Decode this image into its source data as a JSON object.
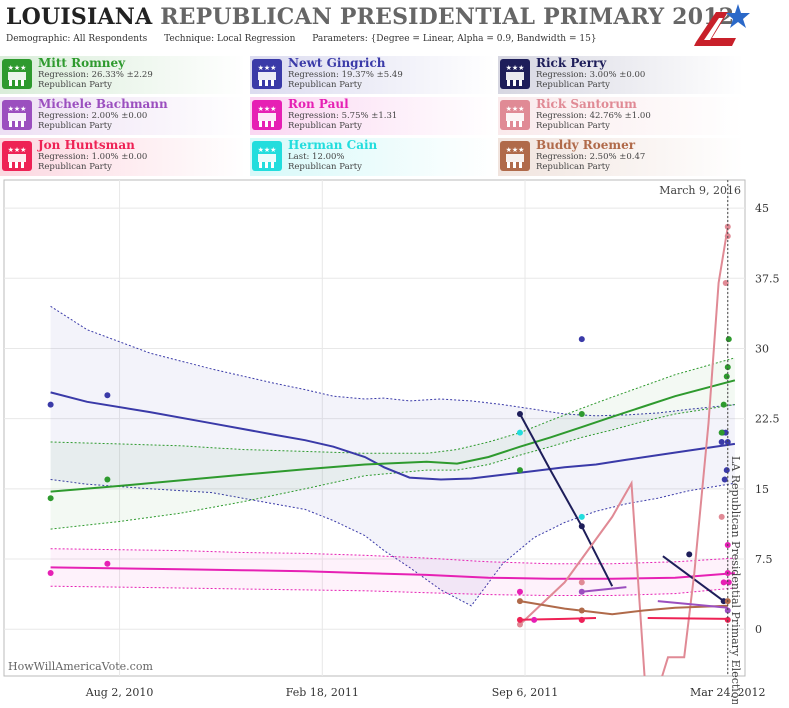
{
  "header": {
    "state": "LOUISIANA",
    "title_rest": "REPUBLICAN PRESIDENTIAL PRIMARY 2012",
    "demographic": "Demographic: All Respondents",
    "technique": "Technique: Local Regression",
    "parameters": "Parameters: {Degree = Linear, Alpha = 0.9, Bandwidth = 15}"
  },
  "candidates": [
    {
      "name": "Mitt Romney",
      "stat": "Regression: 26.33% ±2.29",
      "party": "Republican Party",
      "color": "#2e9a2e"
    },
    {
      "name": "Newt Gingrich",
      "stat": "Regression: 19.37% ±5.49",
      "party": "Republican Party",
      "color": "#3a3aa8"
    },
    {
      "name": "Rick Perry",
      "stat": "Regression: 3.00% ±0.00",
      "party": "Republican Party",
      "color": "#1e1e5a"
    },
    {
      "name": "Michele Bachmann",
      "stat": "Regression: 2.00% ±0.00",
      "party": "Republican Party",
      "color": "#9b4fbf"
    },
    {
      "name": "Ron Paul",
      "stat": "Regression: 5.75% ±1.31",
      "party": "Republican Party",
      "color": "#e620b4"
    },
    {
      "name": "Rick Santorum",
      "stat": "Regression: 42.76% ±1.00",
      "party": "Republican Party",
      "color": "#e08a95"
    },
    {
      "name": "Jon Huntsman",
      "stat": "Regression: 1.00% ±0.00",
      "party": "Republican Party",
      "color": "#ee2255"
    },
    {
      "name": "Herman Cain",
      "stat": "Last: 12.00%",
      "party": "Republican Party",
      "color": "#22dddd"
    },
    {
      "name": "Buddy Roemer",
      "stat": "Regression: 2.50% ±0.47",
      "party": "Republican Party",
      "color": "#b06a4a"
    }
  ],
  "chart_data": {
    "type": "line",
    "x_ticks": [
      "Aug 2, 2010",
      "Feb 18, 2011",
      "Sep 6, 2011",
      "Mar 24, 2012"
    ],
    "y_ticks": [
      "45",
      "37.5",
      "30",
      "22.5",
      "15",
      "7.5",
      "0"
    ],
    "ylim": [
      -5,
      48
    ],
    "xlim": [
      "2010-04-10",
      "2012-04-10"
    ],
    "date_marker": "March 9, 2016",
    "election_label": "LA Republican Presidential Primary Election",
    "election_date": "2012-03-24",
    "watermark": "HowWillAmericaVote.com",
    "series": [
      {
        "name": "Newt Gingrich",
        "color": "#3a3aa8",
        "x": [
          "2010-05-26",
          "2010-07-01",
          "2010-09-01",
          "2010-11-01",
          "2011-01-01",
          "2011-02-01",
          "2011-03-01",
          "2011-04-01",
          "2011-04-20",
          "2011-05-15",
          "2011-06-15",
          "2011-07-15",
          "2011-08-15",
          "2011-09-15",
          "2011-10-15",
          "2011-11-15",
          "2011-12-15",
          "2012-01-15",
          "2012-02-15",
          "2012-03-31"
        ],
        "y": [
          25.3,
          24.3,
          23.2,
          22.0,
          20.8,
          20.2,
          19.5,
          18.4,
          17.3,
          16.2,
          16.0,
          16.1,
          16.5,
          16.9,
          17.3,
          17.6,
          18.1,
          18.6,
          19.1,
          19.8
        ],
        "upper": [
          34.5,
          32.0,
          29.5,
          27.8,
          26.3,
          25.6,
          24.9,
          24.6,
          24.7,
          24.4,
          24.6,
          24.4,
          24.0,
          23.5,
          23.0,
          22.8,
          22.9,
          23.1,
          23.5,
          24.0
        ],
        "lower": [
          16.0,
          15.5,
          15.0,
          14.6,
          13.4,
          12.8,
          11.6,
          10.0,
          8.4,
          6.6,
          4.2,
          2.5,
          7.0,
          9.8,
          11.4,
          12.6,
          13.4,
          14.0,
          14.8,
          15.6
        ],
        "points": [
          [
            "2010-05-26",
            24
          ],
          [
            "2010-07-21",
            25
          ],
          [
            "2011-11-01",
            31
          ],
          [
            "2012-03-18",
            20
          ],
          [
            "2012-03-19",
            21
          ],
          [
            "2012-03-21",
            16
          ],
          [
            "2012-03-22",
            21
          ],
          [
            "2012-03-23",
            17
          ],
          [
            "2012-03-24",
            20
          ]
        ]
      },
      {
        "name": "Mitt Romney",
        "color": "#2e9a2e",
        "x": [
          "2010-05-26",
          "2010-08-01",
          "2010-10-01",
          "2010-12-01",
          "2011-02-01",
          "2011-04-01",
          "2011-06-01",
          "2011-07-01",
          "2011-08-01",
          "2011-09-01",
          "2011-10-01",
          "2011-11-01",
          "2011-12-01",
          "2012-01-01",
          "2012-02-01",
          "2012-03-31"
        ],
        "y": [
          14.7,
          15.3,
          15.9,
          16.5,
          17.1,
          17.6,
          17.9,
          17.7,
          18.4,
          19.5,
          20.5,
          21.6,
          22.7,
          23.8,
          24.9,
          26.6
        ],
        "upper": [
          20.0,
          19.8,
          19.6,
          19.2,
          19.0,
          18.8,
          18.8,
          19.2,
          20.0,
          21.0,
          22.3,
          23.6,
          24.8,
          26.0,
          27.2,
          29.0
        ],
        "lower": [
          10.7,
          11.5,
          12.4,
          13.6,
          15.0,
          16.4,
          17.0,
          17.0,
          17.6,
          18.6,
          19.5,
          20.5,
          21.3,
          22.2,
          23.0,
          24.0
        ],
        "points": [
          [
            "2010-05-26",
            14
          ],
          [
            "2010-07-21",
            16
          ],
          [
            "2011-09-01",
            17
          ],
          [
            "2011-11-01",
            23
          ],
          [
            "2012-03-18",
            21
          ],
          [
            "2012-03-20",
            24
          ],
          [
            "2012-03-23",
            27
          ],
          [
            "2012-03-24",
            28
          ],
          [
            "2012-03-25",
            31
          ]
        ]
      },
      {
        "name": "Ron Paul",
        "color": "#e620b4",
        "x": [
          "2010-05-26",
          "2010-08-01",
          "2010-10-01",
          "2010-12-01",
          "2011-02-01",
          "2011-04-01",
          "2011-06-01",
          "2011-08-01",
          "2011-10-01",
          "2011-12-01",
          "2012-02-01",
          "2012-03-31"
        ],
        "y": [
          6.6,
          6.5,
          6.4,
          6.3,
          6.2,
          6.0,
          5.8,
          5.5,
          5.4,
          5.4,
          5.5,
          6.0
        ],
        "upper": [
          8.6,
          8.5,
          8.4,
          8.2,
          8.1,
          7.9,
          7.6,
          7.2,
          7.0,
          7.0,
          7.2,
          7.6
        ],
        "lower": [
          4.6,
          4.5,
          4.4,
          4.3,
          4.2,
          4.1,
          3.9,
          3.7,
          3.6,
          3.6,
          3.8,
          4.4
        ],
        "points": [
          [
            "2010-05-26",
            6
          ],
          [
            "2010-07-21",
            7
          ],
          [
            "2011-09-01",
            4
          ],
          [
            "2011-09-15",
            1
          ],
          [
            "2011-11-01",
            1
          ],
          [
            "2012-03-20",
            5
          ],
          [
            "2012-03-24",
            6
          ],
          [
            "2012-03-24",
            9
          ],
          [
            "2012-03-25",
            5
          ]
        ]
      },
      {
        "name": "Rick Perry",
        "color": "#1e1e5a",
        "x": [
          "2011-09-01",
          "2011-10-01",
          "2011-11-01",
          "2011-12-01"
        ],
        "y": [
          23.0,
          17.0,
          11.0,
          4.6
        ],
        "points": [
          [
            "2011-09-01",
            23
          ],
          [
            "2011-11-01",
            11
          ],
          [
            "2012-02-15",
            8
          ],
          [
            "2012-03-20",
            3
          ]
        ],
        "extra_line": {
          "x": [
            "2012-01-20",
            "2012-03-20"
          ],
          "y": [
            7.8,
            3.0
          ]
        }
      },
      {
        "name": "Rick Santorum",
        "color": "#e08a95",
        "x": [
          "2011-09-01",
          "2011-10-15",
          "2011-12-01",
          "2011-12-20",
          "2012-01-05",
          "2012-01-25",
          "2012-02-10",
          "2012-02-20",
          "2012-03-05",
          "2012-03-15",
          "2012-03-24"
        ],
        "y": [
          0.5,
          5.0,
          12.0,
          15.6,
          -10.0,
          -3.0,
          -3.0,
          6.0,
          22.0,
          37.0,
          43.0
        ],
        "points": [
          [
            "2011-09-01",
            0.5
          ],
          [
            "2011-11-01",
            5
          ],
          [
            "2012-03-18",
            12
          ],
          [
            "2012-03-22",
            37
          ],
          [
            "2012-03-24",
            42
          ],
          [
            "2012-03-24",
            43
          ]
        ]
      },
      {
        "name": "Buddy Roemer",
        "color": "#b06a4a",
        "x": [
          "2011-09-01",
          "2011-10-15",
          "2011-12-01",
          "2012-01-01",
          "2012-02-01",
          "2012-03-24"
        ],
        "y": [
          3.0,
          2.2,
          1.6,
          2.0,
          2.3,
          2.5
        ],
        "points": [
          [
            "2011-09-01",
            3
          ],
          [
            "2011-11-01",
            2
          ],
          [
            "2012-03-24",
            3
          ]
        ]
      },
      {
        "name": "Michele Bachmann",
        "color": "#9b4fbf",
        "x": [
          "2011-11-01",
          "2011-12-15"
        ],
        "y": [
          4.0,
          4.5
        ],
        "x2": [
          "2012-01-15",
          "2012-03-24"
        ],
        "y2": [
          3.0,
          2.3
        ],
        "points": [
          [
            "2011-11-01",
            4
          ],
          [
            "2012-03-24",
            2
          ]
        ]
      },
      {
        "name": "Jon Huntsman",
        "color": "#ee2255",
        "x": [
          "2011-09-01",
          "2011-10-15",
          "2011-11-15"
        ],
        "y": [
          1.0,
          1.1,
          1.2
        ],
        "x2": [
          "2012-01-05",
          "2012-03-24"
        ],
        "y2": [
          1.2,
          1.1
        ],
        "points": [
          [
            "2011-09-01",
            1
          ],
          [
            "2011-11-01",
            1
          ],
          [
            "2012-03-24",
            1
          ]
        ]
      },
      {
        "name": "Herman Cain",
        "color": "#22dddd",
        "points": [
          [
            "2011-09-01",
            21
          ],
          [
            "2011-11-01",
            12
          ]
        ]
      }
    ]
  }
}
